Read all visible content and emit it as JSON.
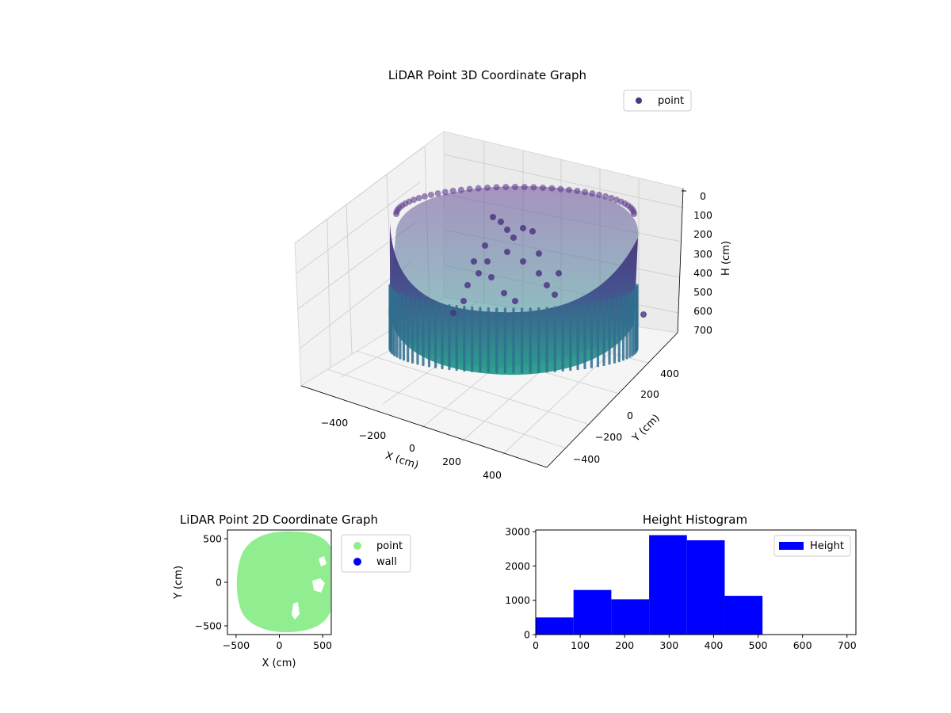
{
  "chart_data": [
    {
      "type": "scatter3d",
      "title": "LiDAR Point 3D Coordinate Graph",
      "xlabel": "X (cm)",
      "ylabel": "Y (cm)",
      "zlabel": "H (cm)",
      "xticks": [
        "−400",
        "−200",
        "0",
        "200",
        "400"
      ],
      "yticks": [
        "−400",
        "−200",
        "0",
        "200",
        "400"
      ],
      "zticks": [
        "0",
        "100",
        "200",
        "300",
        "400",
        "500",
        "600",
        "700"
      ],
      "zlim": [
        700,
        0
      ],
      "legend": {
        "label": "point",
        "position": "upper-right"
      },
      "colors": {
        "marker": "#443983",
        "wall_top": "#482878",
        "wall_bottom": "#1f9e89"
      },
      "grid": true
    },
    {
      "type": "scatter",
      "title": "LiDAR Point 2D Coordinate Graph",
      "xlabel": "X (cm)",
      "ylabel": "Y (cm)",
      "xticks": [
        "−500",
        "0",
        "500"
      ],
      "yticks": [
        "500",
        "0",
        "−500"
      ],
      "xlim": [
        -600,
        600
      ],
      "ylim": [
        -600,
        600
      ],
      "series": [
        {
          "name": "point",
          "color": "#90ee90"
        },
        {
          "name": "wall",
          "color": "#0000ff"
        }
      ],
      "legend": {
        "position": "outside-right"
      }
    },
    {
      "type": "bar",
      "title": "Height Histogram",
      "xlim": [
        0,
        720
      ],
      "ylim": [
        0,
        3050
      ],
      "xticks": [
        0,
        100,
        200,
        300,
        400,
        500,
        600,
        700
      ],
      "yticks": [
        0,
        1000,
        2000,
        3000
      ],
      "bins": [
        {
          "x0": 0,
          "x1": 85,
          "value": 500
        },
        {
          "x0": 85,
          "x1": 170,
          "value": 1300
        },
        {
          "x0": 170,
          "x1": 255,
          "value": 1030
        },
        {
          "x0": 255,
          "x1": 340,
          "value": 2900
        },
        {
          "x0": 340,
          "x1": 425,
          "value": 2750
        },
        {
          "x0": 425,
          "x1": 510,
          "value": 1130
        }
      ],
      "series": [
        {
          "name": "Height",
          "color": "#0000ff"
        }
      ],
      "legend": {
        "position": "upper-right"
      }
    }
  ]
}
